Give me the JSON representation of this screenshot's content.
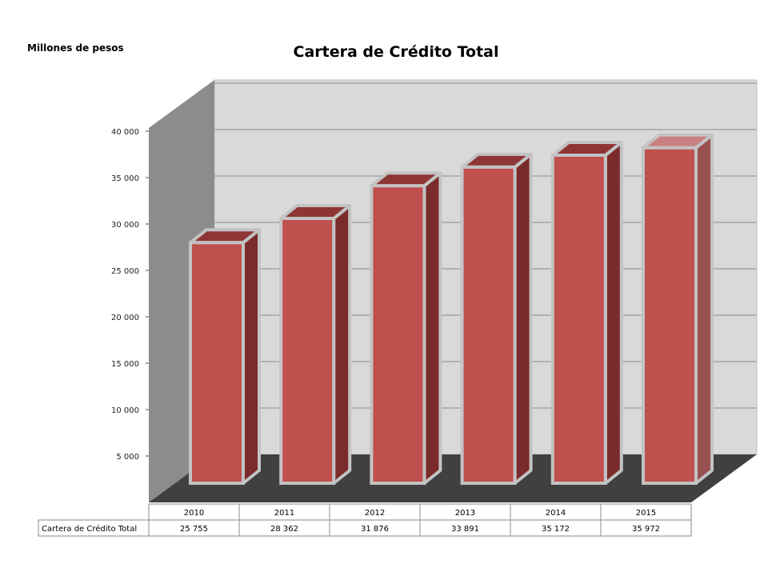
{
  "units_label": "Millones de pesos",
  "chart_data": {
    "type": "bar",
    "title": "Cartera de Crédito Total",
    "ylabel": "Millones de pesos",
    "xlabel": "",
    "categories": [
      "2010",
      "2011",
      "2012",
      "2013",
      "2014",
      "2015"
    ],
    "series": [
      {
        "name": "Cartera de Crédito Total",
        "values": [
          25755,
          28362,
          31876,
          33891,
          35172,
          35972
        ]
      }
    ],
    "value_labels": [
      "25 755",
      "28 362",
      "31 876",
      "33 891",
      "35 172",
      "35 972"
    ],
    "yticks": [
      5000,
      10000,
      15000,
      20000,
      25000,
      30000,
      35000,
      40000
    ],
    "ytick_labels": [
      "5 000",
      "10 000",
      "15 000",
      "20 000",
      "25 000",
      "30 000",
      "35 000",
      "40 000"
    ],
    "ylim": [
      0,
      40000
    ],
    "grid": true,
    "data_table": true,
    "colors": {
      "bar_front": "#c0504d",
      "bar_side": "#7b2b2b",
      "bar_top": "#8e3535",
      "bar_top_last": "#c98080",
      "bar_side_last": "#9a5050",
      "bar_border": "#c3c3c3",
      "back_wall": "#d9d9d9",
      "side_wall": "#8c8c8c",
      "floor": "#404040",
      "gridline": "#8c8c8c"
    }
  }
}
